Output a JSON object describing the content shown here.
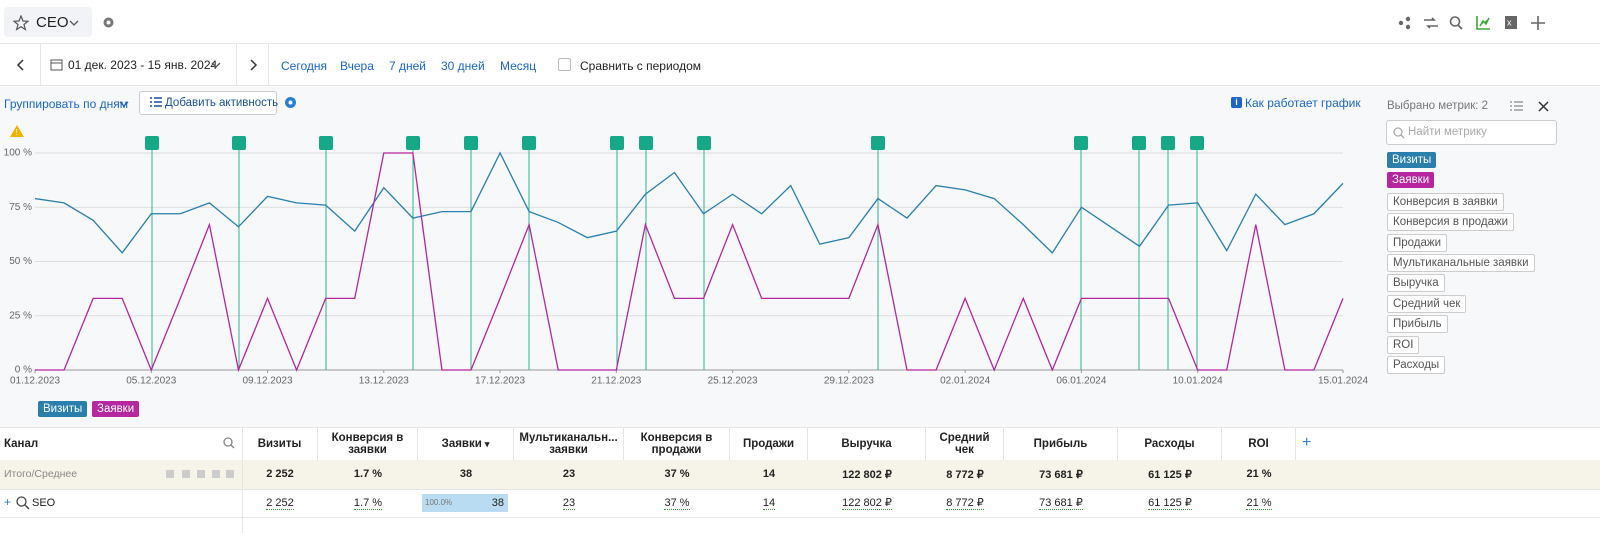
{
  "header": {
    "title": "CEO"
  },
  "toolbar": {
    "date_range": "01 дек. 2023 - 15 янв. 2024",
    "quick": [
      "Сегодня",
      "Вчера",
      "7 дней",
      "30 дней",
      "Месяц"
    ],
    "compare": "Сравнить с периодом"
  },
  "controls": {
    "group_by": "Группировать по дням",
    "add_activity": "Добавить активность",
    "how": "Как работает график"
  },
  "metrics_panel": {
    "selected": "Выбрано метрик: 2",
    "search_placeholder": "Найти метрику",
    "inactive": [
      "Конверсия в заявки",
      "Конверсия в продажи",
      "Продажи",
      "Мультиканальные заявки",
      "Выручка",
      "Средний чек",
      "Прибыль",
      "ROI",
      "Расходы"
    ]
  },
  "chart_data": {
    "type": "line",
    "categories": [
      "01.12.2023",
      null,
      null,
      null,
      "05.12.2023",
      null,
      null,
      null,
      "09.12.2023",
      null,
      null,
      null,
      "13.12.2023",
      null,
      null,
      null,
      "17.12.2023",
      null,
      null,
      null,
      "21.12.2023",
      null,
      null,
      null,
      "25.12.2023",
      null,
      null,
      null,
      "29.12.2023",
      null,
      null,
      null,
      "02.01.2024",
      null,
      null,
      null,
      "06.01.2024",
      null,
      null,
      null,
      "10.01.2024",
      null,
      null,
      null,
      null,
      "15.01.2024"
    ],
    "series": [
      {
        "name": "Визиты",
        "color": "#2a7fad",
        "values": [
          79,
          77,
          69,
          54,
          72,
          72,
          77,
          66,
          80,
          77,
          76,
          64,
          84,
          70,
          73,
          73,
          100,
          73,
          68,
          61,
          64,
          81,
          91,
          72,
          81,
          72,
          85,
          58,
          61,
          79,
          70,
          85,
          83,
          79,
          67,
          54,
          75,
          66,
          57,
          76,
          77,
          55,
          81,
          67,
          72,
          86
        ]
      },
      {
        "name": "Заявки",
        "color": "#b5269f",
        "values": [
          0,
          0,
          33,
          33,
          0,
          33,
          67,
          0,
          33,
          0,
          33,
          33,
          100,
          100,
          0,
          0,
          33,
          67,
          0,
          0,
          0,
          67,
          33,
          33,
          67,
          33,
          33,
          33,
          33,
          67,
          0,
          0,
          33,
          0,
          33,
          0,
          33,
          33,
          33,
          33,
          0,
          0,
          67,
          0,
          0,
          33
        ]
      }
    ],
    "ylim": [
      0,
      100
    ],
    "yticks": [
      {
        "value": 0,
        "label": "0 %"
      },
      {
        "value": 25,
        "label": "25 %"
      },
      {
        "value": 50,
        "label": "50 %"
      },
      {
        "value": 75,
        "label": "75 %"
      },
      {
        "value": 100,
        "label": "100 %"
      }
    ],
    "grid": true
  },
  "table": {
    "columns": [
      "Канал",
      "Визиты",
      "Конверсия в заявки",
      "Заявки",
      "Мультиканальн... заявки",
      "Конверсия в продажи",
      "Продажи",
      "Выручка",
      "Средний чек",
      "Прибыль",
      "Расходы",
      "ROI"
    ],
    "rows": [
      [
        "Итого/Среднее",
        "2 252",
        "1.7 %",
        "38",
        "23",
        "37 %",
        "14",
        "122 802 ₽",
        "8 772 ₽",
        "73 681 ₽",
        "61 125 ₽",
        "21 %"
      ],
      [
        "SEO",
        "2 252",
        "1.7 %",
        "38",
        "23",
        "37 %",
        "14",
        "122 802 ₽",
        "8 772 ₽",
        "73 681 ₽",
        "61 125 ₽",
        "21 %"
      ]
    ],
    "share_label": "100.0%"
  }
}
